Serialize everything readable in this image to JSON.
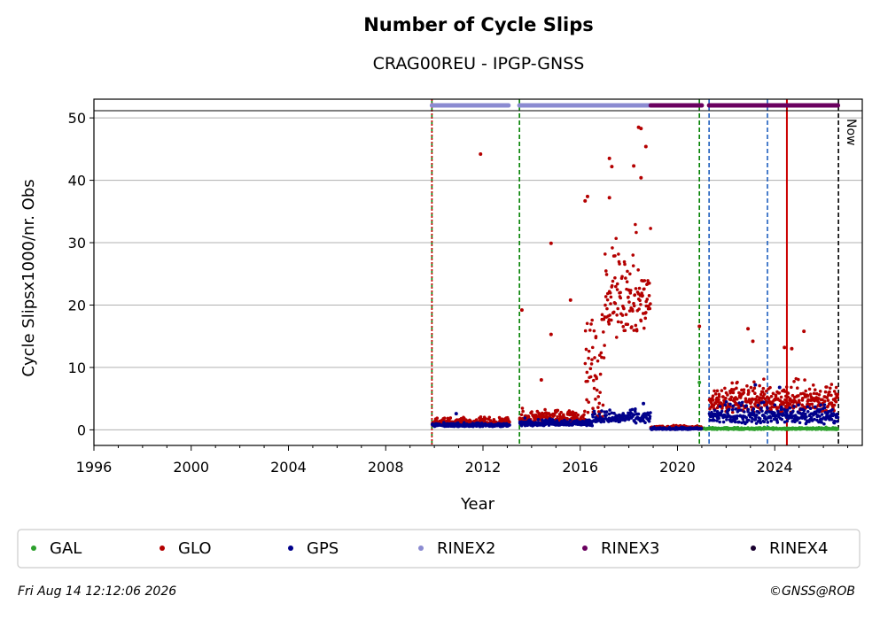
{
  "title": "Number of Cycle Slips",
  "subtitle": "CRAG00REU - IPGP-GNSS",
  "footer": {
    "timestamp": "Fri Aug 14 12:12:06 2026",
    "credit": "©GNSS@ROB"
  },
  "colors": {
    "GAL": "#2ca02c",
    "GLO": "#b40000",
    "GPS": "#00008b",
    "RINEX2": "#8b8bd1",
    "RINEX3": "#6a005f",
    "RINEX4": "#1a0030",
    "green_vline": "#008000",
    "blue_vline": "#1f5fbf",
    "red_vline": "#cc0000",
    "now_vline": "#000000",
    "grid": "#b0b0b0"
  },
  "chart_data": {
    "type": "scatter",
    "title": "Number of Cycle Slips",
    "subtitle": "CRAG00REU - IPGP-GNSS",
    "xlabel": "Year",
    "ylabel": "Cycle Slipsx1000/nr. Obs",
    "xlim": [
      1996,
      2027.6
    ],
    "ylim": [
      -2.5,
      53
    ],
    "xticks": [
      1996,
      2000,
      2004,
      2008,
      2012,
      2016,
      2020,
      2024
    ],
    "yticks": [
      0,
      10,
      20,
      30,
      40,
      50
    ],
    "grid": "horizontal",
    "legend_position": "bottom",
    "legend": [
      "GAL",
      "GLO",
      "GPS",
      "RINEX2",
      "RINEX3",
      "RINEX4"
    ],
    "now_label": "Now",
    "now_year": 2026.62,
    "vertical_lines": [
      {
        "x": 2009.9,
        "color": "green",
        "style": "dashed"
      },
      {
        "x": 2009.9,
        "color": "red",
        "style": "dotted"
      },
      {
        "x": 2013.5,
        "color": "green",
        "style": "dashed"
      },
      {
        "x": 2020.9,
        "color": "green",
        "style": "dashed"
      },
      {
        "x": 2021.3,
        "color": "blue",
        "style": "dashed"
      },
      {
        "x": 2023.7,
        "color": "blue",
        "style": "dashed"
      },
      {
        "x": 2024.5,
        "color": "red",
        "style": "solid"
      },
      {
        "x": 2026.62,
        "color": "black",
        "style": "dashed"
      }
    ],
    "rinex_bars": [
      {
        "name": "RINEX2",
        "start": 2009.9,
        "end": 2013.05,
        "y": 52
      },
      {
        "name": "RINEX2",
        "start": 2013.5,
        "end": 2018.9,
        "y": 52
      },
      {
        "name": "RINEX3",
        "start": 2018.9,
        "end": 2021.0,
        "y": 52
      },
      {
        "name": "RINEX3",
        "start": 2021.3,
        "end": 2026.6,
        "y": 52
      }
    ],
    "series": [
      {
        "name": "GLO",
        "segments": [
          {
            "start": 2009.9,
            "end": 2013.1,
            "base": 0.9,
            "spread": 1.1
          },
          {
            "start": 2013.5,
            "end": 2016.2,
            "base": 1.2,
            "spread": 2.0
          },
          {
            "start": 2016.2,
            "end": 2017.0,
            "base": 4.0,
            "spread": 18.0
          },
          {
            "start": 2017.0,
            "end": 2018.9,
            "base": 17.0,
            "spread": 14.0
          },
          {
            "start": 2018.9,
            "end": 2021.0,
            "base": 0.2,
            "spread": 0.5
          },
          {
            "start": 2021.3,
            "end": 2026.6,
            "base": 3.5,
            "spread": 4.5
          }
        ],
        "outliers": [
          [
            2011.9,
            44.2
          ],
          [
            2013.6,
            19.2
          ],
          [
            2014.8,
            29.9
          ],
          [
            2014.8,
            15.3
          ],
          [
            2015.6,
            20.8
          ],
          [
            2014.4,
            8.0
          ],
          [
            2016.3,
            37.4
          ],
          [
            2016.2,
            36.7
          ],
          [
            2017.2,
            43.5
          ],
          [
            2017.3,
            42.2
          ],
          [
            2017.2,
            37.2
          ],
          [
            2018.4,
            48.5
          ],
          [
            2018.5,
            48.3
          ],
          [
            2018.7,
            45.4
          ],
          [
            2018.2,
            42.3
          ],
          [
            2018.5,
            40.4
          ],
          [
            2020.9,
            16.6
          ],
          [
            2022.9,
            16.2
          ],
          [
            2023.1,
            14.2
          ],
          [
            2025.2,
            15.8
          ],
          [
            2024.4,
            13.2
          ],
          [
            2024.7,
            13.0
          ]
        ]
      },
      {
        "name": "GPS",
        "segments": [
          {
            "start": 2009.9,
            "end": 2013.1,
            "base": 0.6,
            "spread": 0.5
          },
          {
            "start": 2013.5,
            "end": 2016.5,
            "base": 0.8,
            "spread": 1.0
          },
          {
            "start": 2016.5,
            "end": 2018.9,
            "base": 1.4,
            "spread": 1.8
          },
          {
            "start": 2018.9,
            "end": 2021.0,
            "base": 0.1,
            "spread": 0.3
          },
          {
            "start": 2021.3,
            "end": 2026.6,
            "base": 1.5,
            "spread": 3.0
          }
        ],
        "outliers": [
          [
            2010.9,
            2.6
          ],
          [
            2018.6,
            4.2
          ],
          [
            2023.2,
            7.2
          ],
          [
            2024.2,
            6.8
          ]
        ]
      },
      {
        "name": "GAL",
        "segments": [
          {
            "start": 2020.9,
            "end": 2026.6,
            "base": 0.1,
            "spread": 0.3
          }
        ],
        "outliers": [
          [
            2020.9,
            7.6
          ]
        ]
      }
    ]
  }
}
